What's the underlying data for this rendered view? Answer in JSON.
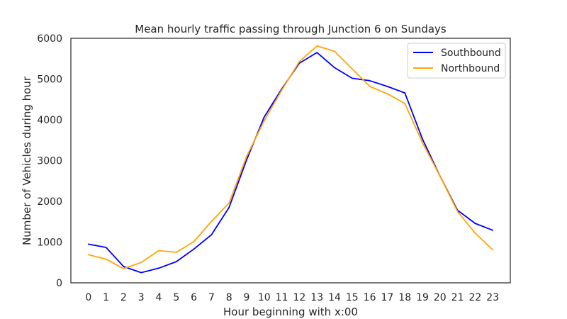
{
  "chart_data": {
    "type": "line",
    "title": "Mean hourly traffic passing through Junction 6 on Sundays",
    "xlabel": "Hour beginning with x:00",
    "ylabel": "Number of Vehicles during hour",
    "x": [
      0,
      1,
      2,
      3,
      4,
      5,
      6,
      7,
      8,
      9,
      10,
      11,
      12,
      13,
      14,
      15,
      16,
      17,
      18,
      19,
      20,
      21,
      22,
      23
    ],
    "xlim": [
      -1,
      24
    ],
    "ylim": [
      0,
      6000
    ],
    "xticks": [
      "0",
      "1",
      "2",
      "3",
      "4",
      "5",
      "6",
      "7",
      "8",
      "9",
      "10",
      "11",
      "12",
      "13",
      "14",
      "15",
      "16",
      "17",
      "18",
      "19",
      "20",
      "21",
      "22",
      "23"
    ],
    "yticks": [
      "0",
      "1000",
      "2000",
      "3000",
      "4000",
      "5000",
      "6000"
    ],
    "grid": false,
    "legend_position": "top-right",
    "series": [
      {
        "name": "Southbound",
        "color": "#0000ff",
        "values": [
          950,
          870,
          400,
          250,
          360,
          520,
          830,
          1180,
          1850,
          3020,
          4070,
          4760,
          5390,
          5650,
          5280,
          5020,
          4960,
          4820,
          4660,
          3530,
          2620,
          1780,
          1460,
          1290
        ]
      },
      {
        "name": "Northbound",
        "color": "#ffa500",
        "values": [
          690,
          580,
          350,
          500,
          790,
          750,
          1010,
          1510,
          1960,
          3100,
          3980,
          4730,
          5430,
          5810,
          5680,
          5250,
          4820,
          4640,
          4400,
          3440,
          2620,
          1750,
          1220,
          810
        ]
      }
    ]
  }
}
